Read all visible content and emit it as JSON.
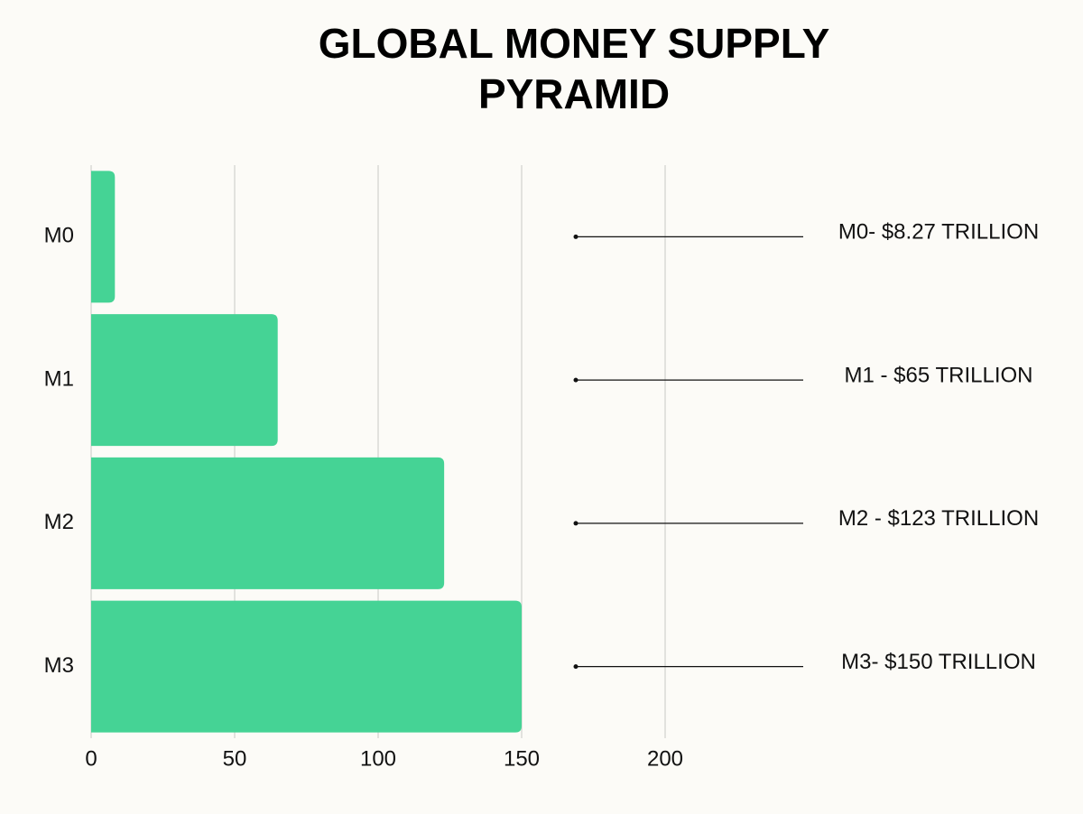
{
  "chart_data": {
    "type": "barh",
    "title": "GLOBAL MONEY SUPPLY PYRAMID",
    "categories": [
      "M0",
      "M1",
      "M2",
      "M3"
    ],
    "values": [
      8.27,
      65,
      123,
      150
    ],
    "value_labels": [
      "M0- $8.27 TRILLION",
      "M1 - $65 TRILLION",
      "M2 - $123 TRILLION",
      "M3- $150 TRILLION"
    ],
    "color": "#45d395",
    "xlim": [
      0,
      200
    ],
    "xticks": [
      0,
      50,
      100,
      150,
      200
    ],
    "grid": true
  }
}
